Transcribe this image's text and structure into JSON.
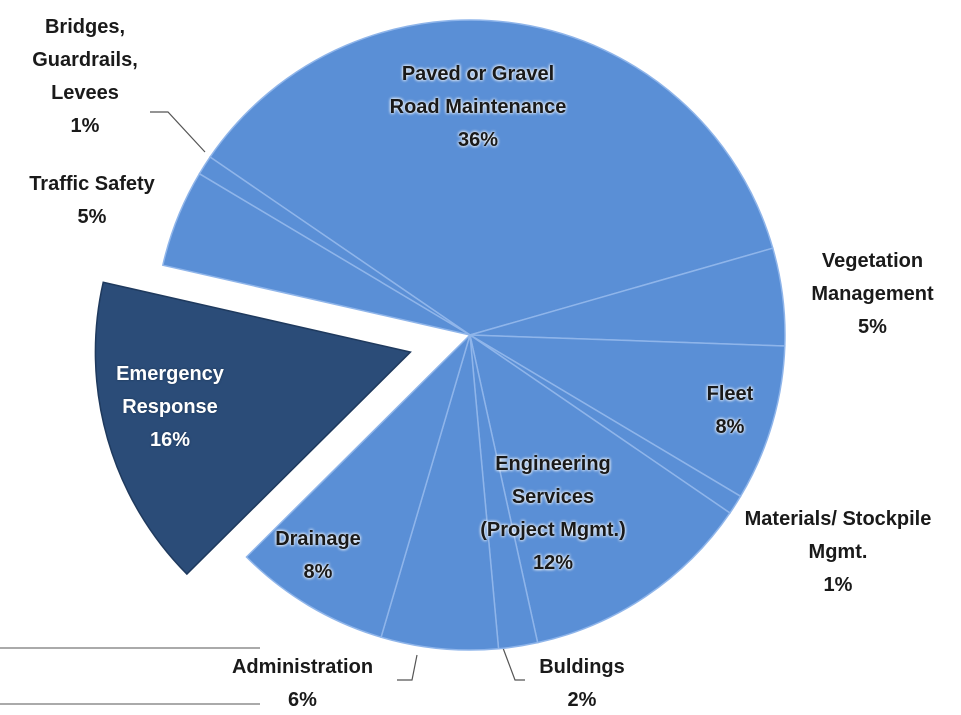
{
  "chart_data": {
    "type": "pie",
    "categories": [
      "Paved or Gravel Road Maintenance",
      "Vegetation Management",
      "Fleet",
      "Materials/ Stockpile Mgmt.",
      "Engineering Services (Project Mgmt.)",
      "Buldings",
      "Administration",
      "Drainage",
      "Emergency Response",
      "Traffic Safety",
      "Bridges, Guardrails, Levees"
    ],
    "values": [
      36,
      5,
      8,
      1,
      12,
      2,
      6,
      8,
      16,
      5,
      1
    ],
    "value_labels": [
      "36%",
      "5%",
      "8%",
      "1%",
      "12%",
      "2%",
      "6%",
      "8%",
      "16%",
      "5%",
      "1%"
    ],
    "colors": [
      "#5a8fd6",
      "#5a8fd6",
      "#5a8fd6",
      "#5a8fd6",
      "#5a8fd6",
      "#5a8fd6",
      "#5a8fd6",
      "#5a8fd6",
      "#2b4c78",
      "#5a8fd6",
      "#5a8fd6"
    ],
    "exploded": [
      8
    ]
  }
}
